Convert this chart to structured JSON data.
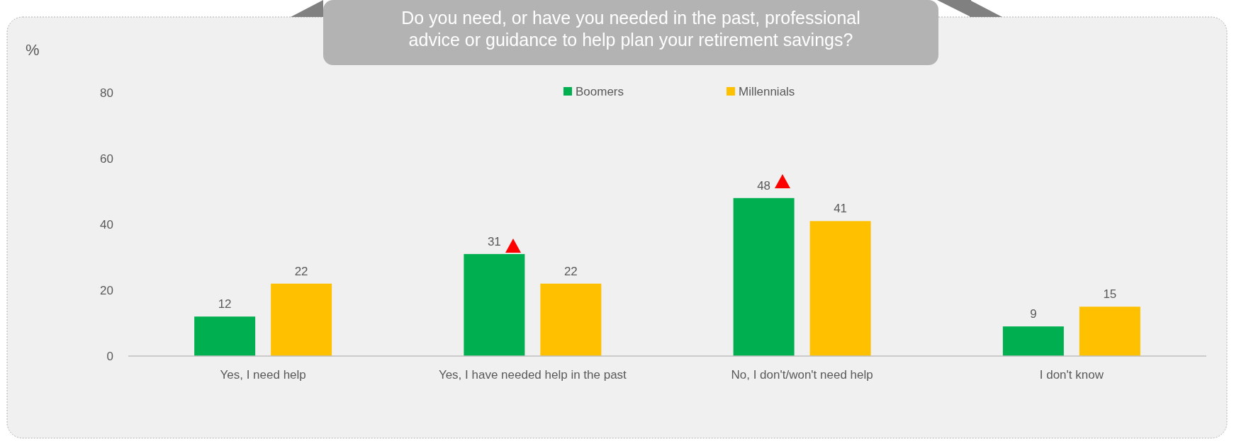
{
  "chart_data": {
    "type": "bar",
    "title": "Do you need, or have you needed in the past, professional advice or guidance to help plan your retirement savings?",
    "ylabel": "%",
    "categories": [
      "Yes, I need help",
      "Yes, I have needed help in the past",
      "No, I don't/won't need help",
      "I don't know"
    ],
    "series": [
      {
        "name": "Boomers",
        "color": "#00b050",
        "values": [
          12,
          31,
          48,
          9
        ]
      },
      {
        "name": "Millennials",
        "color": "#ffc000",
        "values": [
          22,
          22,
          41,
          15
        ]
      }
    ],
    "ylim": [
      0,
      80
    ],
    "yticks": [
      0,
      20,
      40,
      60,
      80
    ],
    "data_labels": true,
    "legend": "top",
    "grid": false
  }
}
